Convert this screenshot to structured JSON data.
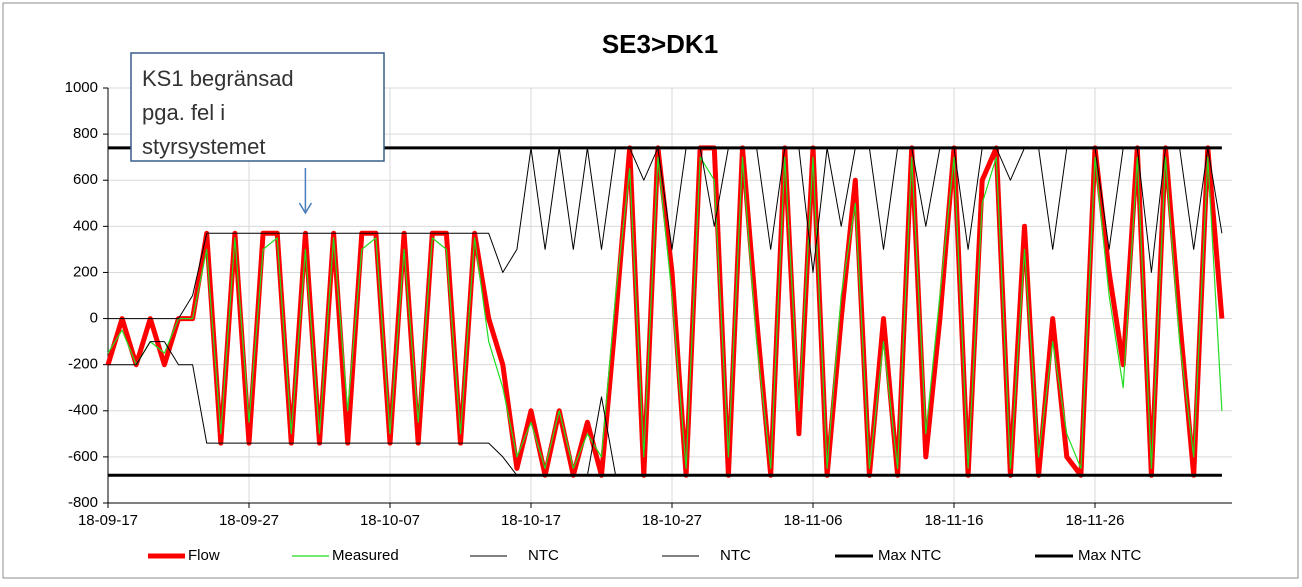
{
  "chart_data": {
    "type": "line",
    "title": "SE3>DK1",
    "annotation": {
      "lines": [
        "KS1 begränsad",
        "pga. fel i",
        "styrsystemet"
      ],
      "x": "18-10-01"
    },
    "categories": [
      "18-09-17",
      "18-09-18",
      "18-09-19",
      "18-09-20",
      "18-09-21",
      "18-09-22",
      "18-09-23",
      "18-09-24",
      "18-09-25",
      "18-09-26",
      "18-09-27",
      "18-09-28",
      "18-09-29",
      "18-09-30",
      "18-10-01",
      "18-10-02",
      "18-10-03",
      "18-10-04",
      "18-10-05",
      "18-10-06",
      "18-10-07",
      "18-10-08",
      "18-10-09",
      "18-10-10",
      "18-10-11",
      "18-10-12",
      "18-10-13",
      "18-10-14",
      "18-10-15",
      "18-10-16",
      "18-10-17",
      "18-10-18",
      "18-10-19",
      "18-10-20",
      "18-10-21",
      "18-10-22",
      "18-10-23",
      "18-10-24",
      "18-10-25",
      "18-10-26",
      "18-10-27",
      "18-10-28",
      "18-10-29",
      "18-10-30",
      "18-10-31",
      "18-11-01",
      "18-11-02",
      "18-11-03",
      "18-11-04",
      "18-11-05",
      "18-11-06",
      "18-11-07",
      "18-11-08",
      "18-11-09",
      "18-11-10",
      "18-11-11",
      "18-11-12",
      "18-11-13",
      "18-11-14",
      "18-11-15",
      "18-11-16",
      "18-11-17",
      "18-11-18",
      "18-11-19",
      "18-11-20",
      "18-11-21",
      "18-11-22",
      "18-11-23",
      "18-11-24",
      "18-11-25",
      "18-11-26",
      "18-11-27",
      "18-11-28",
      "18-11-29",
      "18-11-30",
      "18-12-01",
      "18-12-02",
      "18-12-03",
      "18-12-04",
      "18-12-05"
    ],
    "xticks": [
      "18-09-17",
      "18-09-27",
      "18-10-07",
      "18-10-17",
      "18-10-27",
      "18-11-06",
      "18-11-16",
      "18-11-26"
    ],
    "ylim": [
      -800,
      1000
    ],
    "yticks": [
      -800,
      -600,
      -400,
      -200,
      0,
      200,
      400,
      600,
      800,
      1000
    ],
    "grid": true,
    "legend": "bottom",
    "series": [
      {
        "name": "Flow",
        "color": "#ff0000",
        "width": 5,
        "values": [
          -200,
          0,
          -200,
          0,
          -200,
          0,
          0,
          370,
          -540,
          370,
          -540,
          370,
          370,
          -540,
          370,
          -540,
          370,
          -540,
          370,
          370,
          -540,
          370,
          -540,
          370,
          370,
          -540,
          370,
          0,
          -200,
          -650,
          -400,
          -680,
          -400,
          -680,
          -450,
          -680,
          0,
          740,
          -680,
          740,
          200,
          -680,
          740,
          740,
          -680,
          740,
          0,
          -680,
          740,
          -500,
          740,
          -680,
          0,
          600,
          -680,
          0,
          -680,
          740,
          -600,
          0,
          740,
          -680,
          600,
          740,
          -680,
          400,
          -680,
          0,
          -600,
          -680,
          740,
          200,
          -200,
          740,
          -680,
          740,
          0,
          -680,
          740,
          0
        ]
      },
      {
        "name": "Measured",
        "color": "#22dd22",
        "width": 1.2,
        "values": [
          -150,
          -50,
          -200,
          -100,
          -150,
          0,
          0,
          300,
          -500,
          350,
          -450,
          300,
          350,
          -500,
          300,
          -500,
          350,
          -400,
          300,
          350,
          -500,
          300,
          -450,
          350,
          300,
          -500,
          350,
          -100,
          -300,
          -600,
          -450,
          -650,
          -400,
          -650,
          -500,
          -600,
          100,
          650,
          -600,
          700,
          100,
          -650,
          700,
          600,
          -600,
          700,
          -100,
          -650,
          700,
          -400,
          700,
          -650,
          100,
          500,
          -650,
          -100,
          -650,
          700,
          -500,
          100,
          700,
          -650,
          500,
          700,
          -650,
          300,
          -600,
          -100,
          -500,
          -650,
          700,
          100,
          -300,
          700,
          -650,
          700,
          -100,
          -600,
          700,
          -400
        ]
      },
      {
        "name": "NTC",
        "color": "#000000",
        "width": 1,
        "values": [
          0,
          0,
          0,
          0,
          0,
          0,
          100,
          370,
          370,
          370,
          370,
          370,
          370,
          370,
          370,
          370,
          370,
          370,
          370,
          370,
          370,
          370,
          370,
          370,
          370,
          370,
          370,
          370,
          200,
          300,
          740,
          300,
          740,
          300,
          740,
          300,
          740,
          740,
          600,
          740,
          300,
          740,
          740,
          400,
          740,
          740,
          740,
          300,
          740,
          740,
          200,
          740,
          400,
          740,
          740,
          300,
          740,
          740,
          400,
          740,
          740,
          300,
          740,
          740,
          600,
          740,
          740,
          300,
          740,
          740,
          740,
          300,
          740,
          740,
          200,
          740,
          740,
          300,
          740,
          370
        ]
      },
      {
        "name": "NTC",
        "color": "#000000",
        "width": 1,
        "values": [
          -200,
          -200,
          -200,
          -100,
          -100,
          -200,
          -200,
          -540,
          -540,
          -540,
          -540,
          -540,
          -540,
          -540,
          -540,
          -540,
          -540,
          -540,
          -540,
          -540,
          -540,
          -540,
          -540,
          -540,
          -540,
          -540,
          -540,
          -540,
          -600,
          -680,
          -680,
          -680,
          -680,
          -680,
          -680,
          -340,
          -680,
          -680,
          -680,
          -680,
          -680,
          -680,
          -680,
          -680,
          -680,
          -680,
          -680,
          -680,
          -680,
          -680,
          -680,
          -680,
          -680,
          -680,
          -680,
          -680,
          -680,
          -680,
          -680,
          -680,
          -680,
          -680,
          -680,
          -680,
          -680,
          -680,
          -680,
          -680,
          -680,
          -680,
          -680,
          -680,
          -680,
          -680,
          -680,
          -680,
          -680,
          -680,
          -680,
          -680
        ]
      },
      {
        "name": "Max NTC",
        "color": "#000000",
        "width": 3,
        "values": [
          740,
          740,
          740,
          740,
          740,
          740,
          740,
          740,
          740,
          740,
          740,
          740,
          740,
          740,
          740,
          740,
          740,
          740,
          740,
          740,
          740,
          740,
          740,
          740,
          740,
          740,
          740,
          740,
          740,
          740,
          740,
          740,
          740,
          740,
          740,
          740,
          740,
          740,
          740,
          740,
          740,
          740,
          740,
          740,
          740,
          740,
          740,
          740,
          740,
          740,
          740,
          740,
          740,
          740,
          740,
          740,
          740,
          740,
          740,
          740,
          740,
          740,
          740,
          740,
          740,
          740,
          740,
          740,
          740,
          740,
          740,
          740,
          740,
          740,
          740,
          740,
          740,
          740,
          740,
          740
        ]
      },
      {
        "name": "Max NTC",
        "color": "#000000",
        "width": 3,
        "values": [
          -680,
          -680,
          -680,
          -680,
          -680,
          -680,
          -680,
          -680,
          -680,
          -680,
          -680,
          -680,
          -680,
          -680,
          -680,
          -680,
          -680,
          -680,
          -680,
          -680,
          -680,
          -680,
          -680,
          -680,
          -680,
          -680,
          -680,
          -680,
          -680,
          -680,
          -680,
          -680,
          -680,
          -680,
          -680,
          -680,
          -680,
          -680,
          -680,
          -680,
          -680,
          -680,
          -680,
          -680,
          -680,
          -680,
          -680,
          -680,
          -680,
          -680,
          -680,
          -680,
          -680,
          -680,
          -680,
          -680,
          -680,
          -680,
          -680,
          -680,
          -680,
          -680,
          -680,
          -680,
          -680,
          -680,
          -680,
          -680,
          -680,
          -680,
          -680,
          -680,
          -680,
          -680,
          -680,
          -680,
          -680,
          -680,
          -680,
          -680
        ]
      }
    ]
  }
}
